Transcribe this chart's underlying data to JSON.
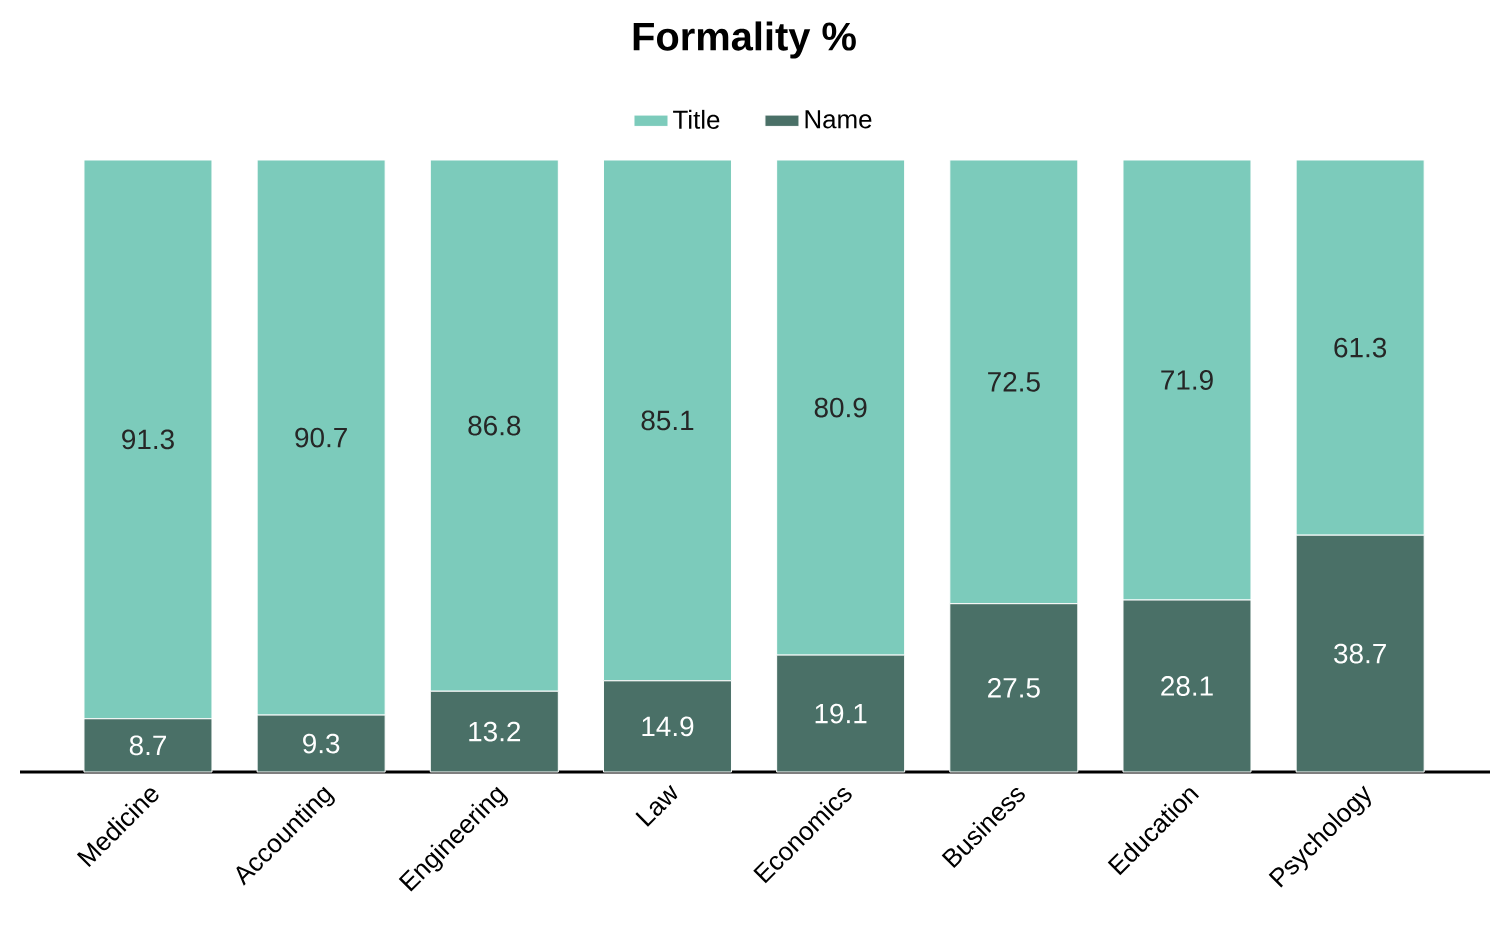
{
  "chart_data": {
    "type": "bar",
    "title": "Formality %",
    "stacked": true,
    "data_labels": true,
    "legend": "top",
    "categories": [
      "Medicine",
      "Accounting",
      "Engineering",
      "Law",
      "Economics",
      "Business",
      "Education",
      "Psychology"
    ],
    "series": [
      {
        "name": "Name",
        "color": "#4a7067",
        "values": [
          8.7,
          9.3,
          13.2,
          14.9,
          19.1,
          27.5,
          28.1,
          38.7
        ]
      },
      {
        "name": "Title",
        "color": "#7ccbbb",
        "values": [
          91.3,
          90.7,
          86.8,
          85.1,
          80.9,
          72.5,
          71.9,
          61.3
        ]
      }
    ]
  }
}
